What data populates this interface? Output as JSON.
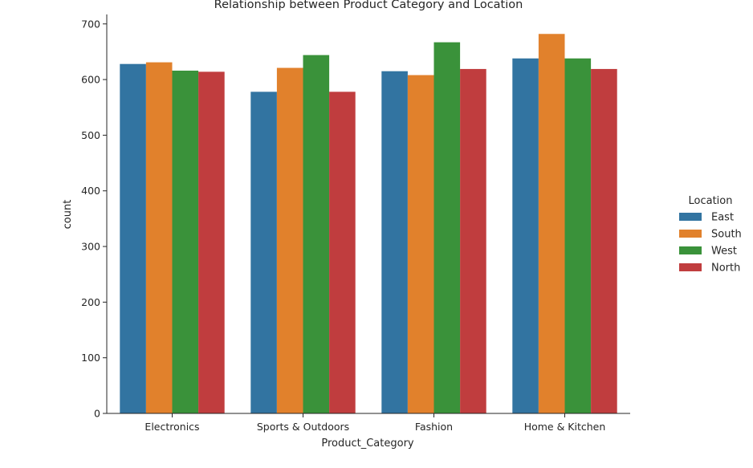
{
  "chart_data": {
    "type": "bar",
    "title": "Relationship between Product Category and Location",
    "xlabel": "Product_Category",
    "ylabel": "count",
    "ylim": [
      0,
      717
    ],
    "yticks": [
      0,
      100,
      200,
      300,
      400,
      500,
      600,
      700
    ],
    "grid": false,
    "legend_title": "Location",
    "legend_position": "right",
    "categories": [
      "Electronics",
      "Sports & Outdoors",
      "Fashion",
      "Home & Kitchen"
    ],
    "series": [
      {
        "name": "East",
        "color": "#3274a1",
        "values": [
          628,
          578,
          615,
          638
        ]
      },
      {
        "name": "South",
        "color": "#e1812c",
        "values": [
          631,
          621,
          608,
          682
        ]
      },
      {
        "name": "West",
        "color": "#3a923a",
        "values": [
          616,
          644,
          667,
          638
        ]
      },
      {
        "name": "North",
        "color": "#c03d3e",
        "values": [
          614,
          578,
          619,
          619
        ]
      }
    ]
  }
}
